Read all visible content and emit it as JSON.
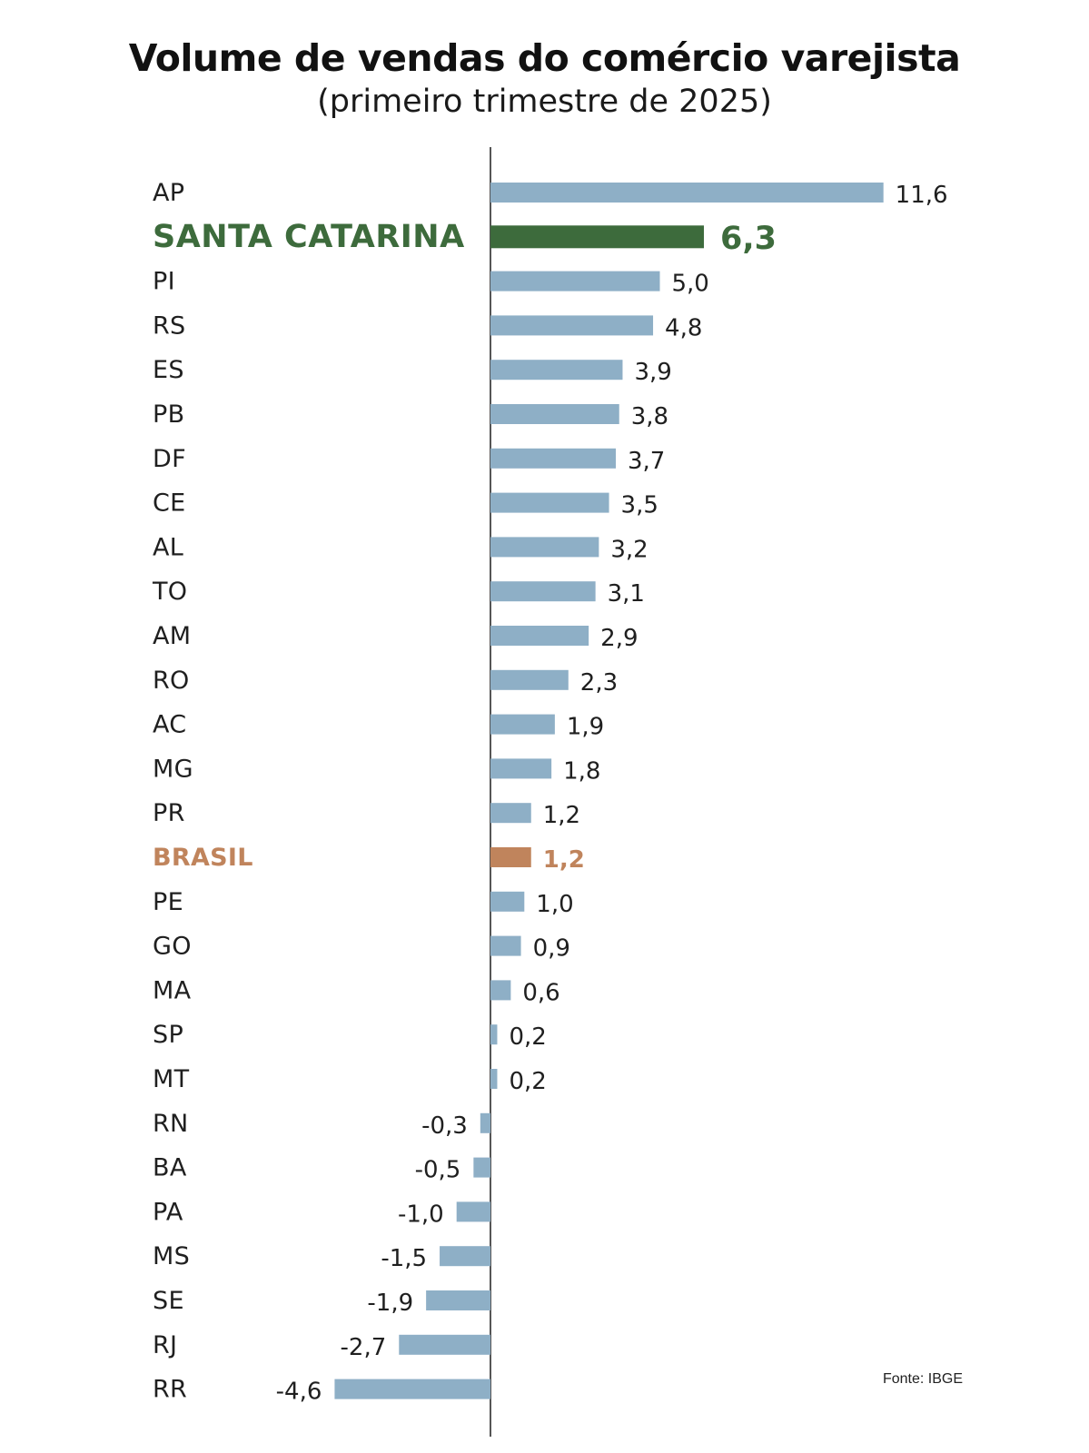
{
  "chart_data": {
    "type": "bar",
    "orientation": "horizontal",
    "title": "Volume de vendas do comércio varejista",
    "subtitle": "(primeiro trimestre de 2025)",
    "source": "Fonte: IBGE",
    "categories": [
      "AP",
      "SANTA CATARINA",
      "PI",
      "RS",
      "ES",
      "PB",
      "DF",
      "CE",
      "AL",
      "TO",
      "AM",
      "RO",
      "AC",
      "MG",
      "PR",
      "BRASIL",
      "PE",
      "GO",
      "MA",
      "SP",
      "MT",
      "RN",
      "BA",
      "PA",
      "MS",
      "SE",
      "RJ",
      "RR"
    ],
    "values": [
      11.6,
      6.3,
      5.0,
      4.8,
      3.9,
      3.8,
      3.7,
      3.5,
      3.2,
      3.1,
      2.9,
      2.3,
      1.9,
      1.8,
      1.2,
      1.2,
      1.0,
      0.9,
      0.6,
      0.2,
      0.2,
      -0.3,
      -0.5,
      -1.0,
      -1.5,
      -1.9,
      -2.7,
      -4.6
    ],
    "value_labels": [
      "11,6",
      "6,3",
      "5,0",
      "4,8",
      "3,9",
      "3,8",
      "3,7",
      "3,5",
      "3,2",
      "3,1",
      "2,9",
      "2,3",
      "1,9",
      "1,8",
      "1,2",
      "1,2",
      "1,0",
      "0,9",
      "0,6",
      "0,2",
      "0,2",
      "-0,3",
      "-0,5",
      "-1,0",
      "-1,5",
      "-1,9",
      "-2,7",
      "-4,6"
    ],
    "highlights": {
      "SANTA CATARINA": "#3d6b3c",
      "BRASIL": "#c0845c"
    },
    "colors": {
      "default_bar": "#8eafc6",
      "axis_line": "#555555",
      "label_text": "#1f1f1f"
    },
    "xlim": [
      -4.6,
      11.6
    ],
    "grid": false,
    "legend": "none"
  }
}
